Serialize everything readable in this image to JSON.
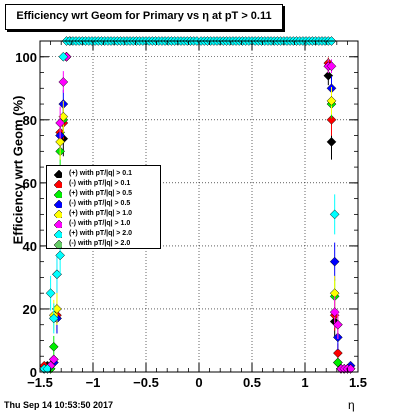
{
  "title": "Efficiency wrt Geom for Primary vs   η at pT > 0.11",
  "timestamp": "Thu Sep 14 10:53:50 2017",
  "chart_data": {
    "type": "scatter",
    "title": "Efficiency wrt Geom for Primary vs   η at pT > 0.11",
    "xlabel": "η",
    "ylabel": "Efficiency wrt Geom (%)",
    "xlim": [
      -1.5,
      1.5
    ],
    "ylim": [
      0,
      105
    ],
    "x_ticks": [
      "−1.5",
      "−1",
      "−0.5",
      "0",
      "0.5",
      "1",
      "1.5"
    ],
    "y_ticks": [
      "0",
      "20",
      "40",
      "60",
      "80",
      "100"
    ],
    "grid": true,
    "legend_placement": "left-middle",
    "series": [
      {
        "name": "(+) with pT/|q| > 0.1",
        "color": "#000000",
        "x": [
          -1.46,
          -1.43,
          -1.4,
          -1.37,
          -1.34,
          -1.31,
          -1.28,
          -1.25,
          -1.22,
          1.22,
          1.25,
          1.28,
          1.31,
          1.34,
          1.37,
          1.4,
          1.43
        ],
        "y": [
          1,
          2,
          1,
          4,
          17,
          75,
          74,
          100,
          105,
          94,
          73,
          16,
          3,
          1,
          1,
          1,
          1
        ]
      },
      {
        "name": "(-) with pT/|q| > 0.1",
        "color": "#ff0000",
        "x": [
          -1.46,
          -1.43,
          -1.4,
          -1.37,
          -1.34,
          -1.31,
          -1.28,
          -1.25,
          -1.22,
          1.22,
          1.25,
          1.28,
          1.31,
          1.34,
          1.37,
          1.4,
          1.43
        ],
        "y": [
          2,
          1,
          2,
          3,
          18,
          76,
          79,
          100,
          105,
          98,
          80,
          18,
          6,
          1,
          1,
          1,
          1
        ]
      },
      {
        "name": "(+) with pT/|q| > 0.5",
        "color": "#00ee00",
        "x": [
          -1.46,
          -1.43,
          -1.4,
          -1.37,
          -1.34,
          -1.31,
          -1.28,
          -1.25,
          -1.22,
          1.22,
          1.25,
          1.28,
          1.31,
          1.34,
          1.37,
          1.4,
          1.43
        ],
        "y": [
          1,
          1,
          1,
          8,
          20,
          70,
          80,
          100,
          105,
          97,
          85,
          24,
          3,
          1,
          1,
          1,
          1
        ]
      },
      {
        "name": "(-) with pT/|q| > 0.5",
        "color": "#0000ff",
        "x": [
          -1.46,
          -1.43,
          -1.4,
          -1.37,
          -1.34,
          -1.31,
          -1.28,
          -1.25,
          -1.22,
          1.22,
          1.25,
          1.28,
          1.31,
          1.34,
          1.37,
          1.4,
          1.43
        ],
        "y": [
          1,
          1,
          2,
          3,
          17,
          75,
          85,
          100,
          105,
          97,
          90,
          35,
          11,
          1,
          1,
          1,
          2
        ]
      },
      {
        "name": "(+) with pT/|q| > 1.0",
        "color": "#ffff00",
        "x": [
          -1.46,
          -1.43,
          -1.4,
          -1.37,
          -1.34,
          -1.31,
          -1.28,
          -1.25,
          -1.22,
          1.22,
          1.25,
          1.28,
          1.31,
          1.34,
          1.37,
          1.4,
          1.43
        ],
        "y": [
          1,
          1,
          2,
          18,
          20,
          73,
          81,
          100,
          105,
          97,
          86,
          25,
          15,
          1,
          1,
          1,
          1
        ]
      },
      {
        "name": "(-) with pT/|q| > 1.0",
        "color": "#ff00ff",
        "x": [
          -1.46,
          -1.43,
          -1.4,
          -1.37,
          -1.34,
          -1.31,
          -1.28,
          -1.25,
          -1.22,
          1.22,
          1.25,
          1.28,
          1.31,
          1.34,
          1.37,
          1.4,
          1.43
        ],
        "y": [
          1,
          1,
          2,
          4,
          31,
          79,
          92,
          100,
          105,
          97,
          97,
          19,
          15,
          1,
          1,
          1,
          1
        ]
      },
      {
        "name": "(+) with pT/|q| > 2.0",
        "color": "#00ffff",
        "x": [
          -1.46,
          -1.43,
          -1.4,
          -1.37,
          -1.34,
          -1.31,
          -1.28,
          -1.25,
          -1.22,
          -1.19,
          -1.16,
          -1.13,
          -1.1,
          -1.07,
          -1.04,
          -1.01,
          -0.98,
          -0.95,
          -0.92,
          -0.89,
          -0.86,
          -0.83,
          -0.8,
          -0.77,
          -0.74,
          -0.71,
          -0.68,
          -0.65,
          -0.62,
          -0.59,
          -0.56,
          -0.53,
          -0.5,
          -0.47,
          -0.44,
          -0.41,
          -0.38,
          -0.35,
          -0.32,
          -0.29,
          -0.26,
          -0.23,
          -0.2,
          -0.17,
          -0.14,
          -0.11,
          -0.08,
          -0.05,
          -0.02,
          0.02,
          0.05,
          0.08,
          0.11,
          0.14,
          0.17,
          0.2,
          0.23,
          0.26,
          0.29,
          0.32,
          0.35,
          0.38,
          0.41,
          0.44,
          0.47,
          0.5,
          0.53,
          0.56,
          0.59,
          0.62,
          0.65,
          0.68,
          0.71,
          0.74,
          0.77,
          0.8,
          0.83,
          0.86,
          0.89,
          0.92,
          0.95,
          0.98,
          1.01,
          1.04,
          1.07,
          1.1,
          1.13,
          1.16,
          1.19,
          1.22,
          1.25,
          1.28
        ],
        "y": [
          1,
          1,
          25,
          17,
          31,
          37,
          100,
          105,
          105,
          105,
          105,
          105,
          105,
          105,
          105,
          105,
          105,
          105,
          105,
          105,
          105,
          105,
          105,
          105,
          105,
          105,
          105,
          105,
          105,
          105,
          105,
          105,
          105,
          105,
          105,
          105,
          105,
          105,
          105,
          105,
          105,
          105,
          105,
          105,
          105,
          105,
          105,
          105,
          105,
          105,
          105,
          105,
          105,
          105,
          105,
          105,
          105,
          105,
          105,
          105,
          105,
          105,
          105,
          105,
          105,
          105,
          105,
          105,
          105,
          105,
          105,
          105,
          105,
          105,
          105,
          105,
          105,
          105,
          105,
          105,
          105,
          105,
          105,
          105,
          105,
          105,
          105,
          105,
          105,
          105,
          105,
          50
        ]
      },
      {
        "name": "(-) with pT/|q| > 2.0",
        "color": "#66cc66",
        "x": [],
        "y": []
      }
    ]
  }
}
